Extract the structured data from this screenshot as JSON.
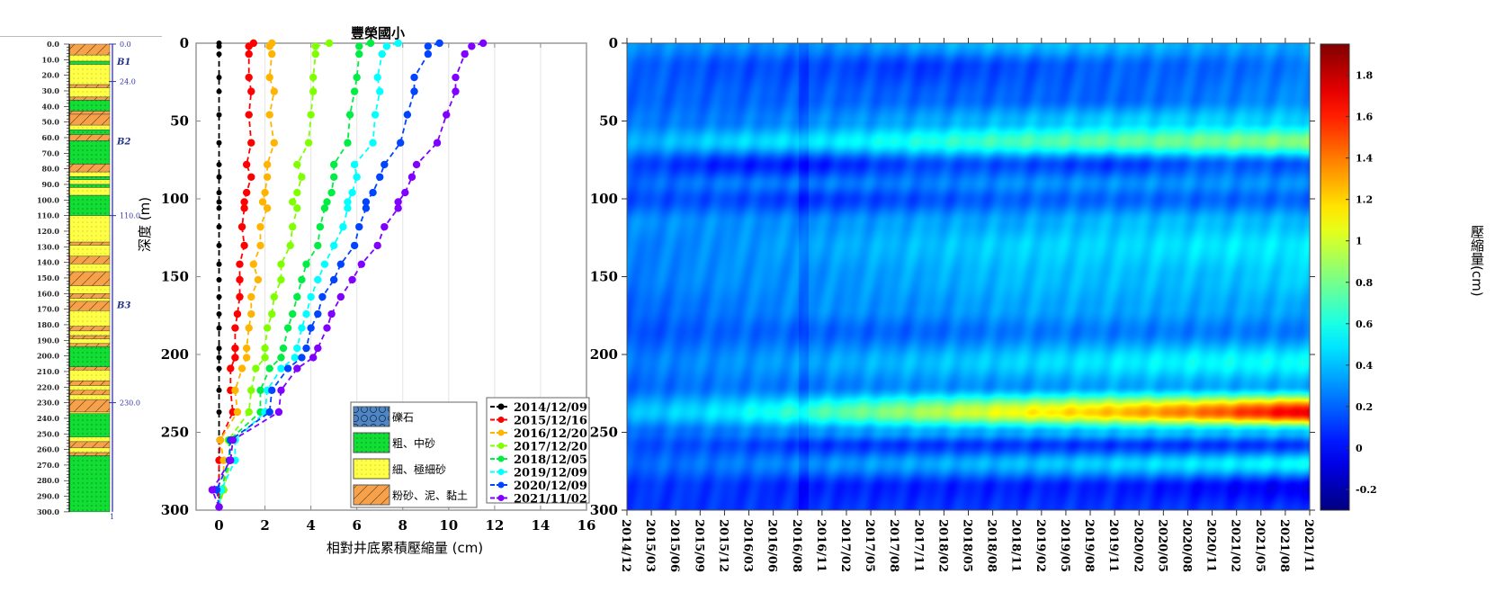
{
  "chart_data": [
    {
      "type": "strata-column",
      "depth_tick_labels": [
        "0.0",
        "10.0",
        "20.0",
        "30.0",
        "40.0",
        "50.0",
        "60.0",
        "70.0",
        "80.0",
        "90.0",
        "100.0",
        "110.0",
        "120.0",
        "130.0",
        "140.0",
        "150.0",
        "160.0",
        "170.0",
        "180.0",
        "190.0",
        "200.0",
        "210.0",
        "220.0",
        "230.0",
        "240.0",
        "250.0",
        "260.0",
        "270.0",
        "280.0",
        "290.0",
        "300.0"
      ],
      "boundary_labels": [
        {
          "depth": 0,
          "label": "0.0"
        },
        {
          "depth": 24,
          "label": "24.0"
        },
        {
          "depth": 110,
          "label": "110.0"
        },
        {
          "depth": 230,
          "label": "230.0"
        }
      ],
      "unit_labels": [
        {
          "depth": 11,
          "label": "B1"
        },
        {
          "depth": 62,
          "label": "B2"
        },
        {
          "depth": 167,
          "label": "B3"
        }
      ],
      "bottom_label": "1",
      "layers": [
        [
          0,
          7,
          "silt"
        ],
        [
          7,
          11,
          "fine"
        ],
        [
          11,
          13,
          "coarse"
        ],
        [
          13,
          26,
          "fine"
        ],
        [
          26,
          28,
          "silt"
        ],
        [
          28,
          34,
          "fine"
        ],
        [
          34,
          36,
          "silt"
        ],
        [
          36,
          43,
          "coarse"
        ],
        [
          43,
          45,
          "silt"
        ],
        [
          45,
          52,
          "silt"
        ],
        [
          52,
          55,
          "fine"
        ],
        [
          55,
          58,
          "coarse"
        ],
        [
          58,
          62,
          "silt"
        ],
        [
          62,
          77,
          "coarse"
        ],
        [
          77,
          82,
          "silt"
        ],
        [
          82,
          85,
          "fine"
        ],
        [
          85,
          87,
          "coarse"
        ],
        [
          87,
          90,
          "fine"
        ],
        [
          90,
          92,
          "coarse"
        ],
        [
          92,
          97,
          "fine"
        ],
        [
          97,
          110,
          "coarse"
        ],
        [
          110,
          127,
          "fine"
        ],
        [
          127,
          129,
          "silt"
        ],
        [
          129,
          136,
          "fine"
        ],
        [
          136,
          141,
          "silt"
        ],
        [
          141,
          146,
          "fine"
        ],
        [
          146,
          155,
          "silt"
        ],
        [
          155,
          160,
          "fine"
        ],
        [
          160,
          163,
          "silt"
        ],
        [
          163,
          165,
          "fine"
        ],
        [
          165,
          171,
          "silt"
        ],
        [
          171,
          181,
          "fine"
        ],
        [
          181,
          184,
          "silt"
        ],
        [
          184,
          187,
          "fine"
        ],
        [
          187,
          189,
          "silt"
        ],
        [
          189,
          192,
          "fine"
        ],
        [
          192,
          194,
          "silt"
        ],
        [
          194,
          207,
          "coarse"
        ],
        [
          207,
          209,
          "silt"
        ],
        [
          209,
          216,
          "fine"
        ],
        [
          216,
          219,
          "silt"
        ],
        [
          219,
          222,
          "fine"
        ],
        [
          222,
          225,
          "silt"
        ],
        [
          225,
          228,
          "fine"
        ],
        [
          228,
          236,
          "silt"
        ],
        [
          236,
          237,
          "fine"
        ],
        [
          237,
          252,
          "coarse"
        ],
        [
          252,
          255,
          "fine"
        ],
        [
          255,
          259,
          "silt"
        ],
        [
          259,
          262,
          "fine"
        ],
        [
          262,
          264,
          "silt"
        ],
        [
          264,
          300,
          "coarse"
        ]
      ]
    },
    {
      "type": "line",
      "title": "豐榮國小",
      "xlabel": "相對井底累積壓縮量 (cm)",
      "ylabel": "深度 (m)",
      "xlim": [
        -1,
        16
      ],
      "ylim": [
        0,
        300
      ],
      "y_reversed": true,
      "x_ticks": [
        0,
        2,
        4,
        6,
        8,
        10,
        12,
        14,
        16
      ],
      "y_ticks": [
        0,
        50,
        100,
        150,
        200,
        250,
        300
      ],
      "grid": "vertical",
      "legend_placement": "bottom-right",
      "depth": [
        0,
        2,
        7,
        22,
        31,
        46,
        64,
        78,
        86,
        96,
        102,
        106,
        118,
        130,
        142,
        152,
        163,
        174,
        183,
        196,
        202,
        209,
        223,
        237,
        255,
        268,
        287,
        298
      ],
      "series": [
        {
          "name": "2014/12/09",
          "color": "#000000",
          "values": [
            0,
            0,
            0,
            0,
            0,
            0,
            0,
            0,
            0,
            0,
            0,
            0,
            0,
            0,
            0,
            0,
            0,
            0,
            0,
            0,
            0,
            0,
            0,
            0,
            0,
            0,
            0,
            0
          ]
        },
        {
          "name": "2015/12/16",
          "color": "#ff0000",
          "values": [
            1.5,
            1.3,
            1.3,
            1.3,
            1.4,
            1.3,
            1.4,
            1.2,
            1.4,
            1.2,
            1.1,
            1.1,
            1.0,
            1.1,
            0.9,
            0.9,
            0.9,
            0.8,
            0.7,
            0.7,
            0.7,
            0.5,
            0.5,
            0.6,
            0.05,
            0.0,
            0.0,
            0.0
          ]
        },
        {
          "name": "2016/12/20",
          "color": "#ffb400",
          "values": [
            2.3,
            2.2,
            2.3,
            2.2,
            2.4,
            2.2,
            2.4,
            2.1,
            2.1,
            2.0,
            1.9,
            2.1,
            1.8,
            1.8,
            1.5,
            1.7,
            1.4,
            1.4,
            1.3,
            1.2,
            1.2,
            1.0,
            0.7,
            0.8,
            0.05,
            0.2,
            0.2,
            0.0
          ]
        },
        {
          "name": "2017/12/20",
          "color": "#80ff00",
          "values": [
            4.8,
            4.2,
            4.2,
            4.1,
            4.1,
            4.0,
            3.9,
            3.4,
            3.6,
            3.4,
            3.2,
            3.4,
            3.2,
            3.1,
            2.7,
            2.7,
            2.4,
            2.3,
            2.1,
            2.0,
            2.0,
            1.6,
            1.4,
            1.3,
            0.4,
            0.5,
            0.2,
            0.0
          ]
        },
        {
          "name": "2018/12/05",
          "color": "#00ee44",
          "values": [
            6.6,
            6.1,
            6.1,
            6.0,
            5.9,
            5.7,
            5.6,
            5.0,
            5.0,
            4.9,
            4.7,
            4.6,
            4.4,
            4.3,
            3.8,
            3.6,
            3.4,
            3.2,
            3.0,
            2.8,
            2.7,
            2.2,
            1.8,
            1.8,
            0.45,
            0.45,
            0.1,
            0.0
          ]
        },
        {
          "name": "2019/12/09",
          "color": "#00ffff",
          "values": [
            7.8,
            7.3,
            7.1,
            6.9,
            7.0,
            6.8,
            6.7,
            5.9,
            6.0,
            5.8,
            5.6,
            5.6,
            5.4,
            5.0,
            4.6,
            4.3,
            4.0,
            3.8,
            3.6,
            3.4,
            3.3,
            2.7,
            2.1,
            2.0,
            0.7,
            0.7,
            0.1,
            0.0
          ]
        },
        {
          "name": "2020/12/09",
          "color": "#0044ff",
          "values": [
            9.6,
            9.1,
            9.1,
            8.5,
            8.5,
            8.2,
            7.9,
            7.2,
            7.0,
            6.7,
            6.4,
            6.4,
            6.1,
            5.9,
            5.3,
            5.0,
            4.5,
            4.3,
            4.0,
            3.8,
            3.6,
            3.0,
            2.3,
            2.2,
            0.5,
            0.45,
            -0.1,
            0.0
          ]
        },
        {
          "name": "2021/11/02",
          "color": "#8000ff",
          "values": [
            11.5,
            11.0,
            10.7,
            10.3,
            10.3,
            9.9,
            9.5,
            8.6,
            8.4,
            8.1,
            7.8,
            7.8,
            7.2,
            6.9,
            6.2,
            5.8,
            5.3,
            4.9,
            4.7,
            4.3,
            4.1,
            3.4,
            2.7,
            2.6,
            0.6,
            0.5,
            -0.3,
            0.0
          ]
        }
      ],
      "lithology_legend": [
        {
          "key": "gravel",
          "label": "礫石",
          "color": "#4f86c6"
        },
        {
          "key": "coarse",
          "label": "粗、中砂",
          "color": "#11dd33"
        },
        {
          "key": "fine",
          "label": "細、極細砂",
          "color": "#ffff44"
        },
        {
          "key": "silt",
          "label": "粉砂、泥、黏土",
          "color": "#f7a24a"
        }
      ]
    },
    {
      "type": "heatmap",
      "ylim": [
        0,
        300
      ],
      "y_ticks": [
        0,
        50,
        100,
        150,
        200,
        250,
        300
      ],
      "x_tick_labels": [
        "2014/12",
        "2015/03",
        "2015/06",
        "2015/09",
        "2015/12",
        "2016/03",
        "2016/06",
        "2016/08",
        "2016/11",
        "2017/02",
        "2017/05",
        "2017/08",
        "2017/11",
        "2018/02",
        "2018/05",
        "2018/08",
        "2018/11",
        "2019/02",
        "2019/05",
        "2019/08",
        "2019/11",
        "2020/02",
        "2020/05",
        "2020/08",
        "2020/11",
        "2021/02",
        "2021/05",
        "2021/08",
        "2021/11"
      ],
      "colorbar": {
        "label": "壓縮量(cm)",
        "range": [
          -0.3,
          1.95
        ],
        "ticks": [
          "-0.2",
          "0",
          "0.2",
          "0.4",
          "0.6",
          "0.8",
          "1",
          "1.2",
          "1.4",
          "1.6",
          "1.8"
        ],
        "tick_values": [
          -0.2,
          0,
          0.2,
          0.4,
          0.6,
          0.8,
          1,
          1.2,
          1.4,
          1.6,
          1.8
        ],
        "colormap": "jet"
      },
      "sample_dates": [
        "2014/12",
        "2015/12",
        "2016/11",
        "2017/11",
        "2018/11",
        "2019/11",
        "2020/11",
        "2021/11"
      ],
      "sample_depths": [
        0,
        15,
        35,
        50,
        63,
        78,
        90,
        100,
        115,
        130,
        150,
        170,
        185,
        205,
        220,
        237,
        250,
        258,
        270,
        285,
        300
      ],
      "values": [
        [
          0.3,
          0.3,
          0.3,
          0.35,
          0.4,
          0.4,
          0.35,
          0.35
        ],
        [
          0.2,
          0.15,
          0.15,
          0.1,
          0.15,
          0.2,
          0.2,
          0.25
        ],
        [
          0.2,
          0.2,
          0.2,
          0.2,
          0.2,
          0.2,
          0.25,
          0.3
        ],
        [
          0.25,
          0.25,
          0.3,
          0.35,
          0.4,
          0.45,
          0.45,
          0.45
        ],
        [
          0.35,
          0.45,
          0.5,
          0.6,
          0.7,
          0.75,
          0.8,
          0.85
        ],
        [
          0.15,
          0.05,
          0.05,
          0.15,
          0.15,
          0.1,
          0.2,
          0.15
        ],
        [
          0.2,
          0.25,
          0.25,
          0.25,
          0.3,
          0.3,
          0.3,
          0.3
        ],
        [
          0.15,
          0.15,
          0.1,
          0.15,
          0.2,
          0.2,
          0.2,
          0.2
        ],
        [
          0.3,
          0.3,
          0.3,
          0.35,
          0.35,
          0.4,
          0.4,
          0.4
        ],
        [
          0.25,
          0.3,
          0.35,
          0.4,
          0.45,
          0.45,
          0.5,
          0.5
        ],
        [
          0.25,
          0.3,
          0.3,
          0.35,
          0.4,
          0.4,
          0.4,
          0.45
        ],
        [
          0.2,
          0.25,
          0.3,
          0.3,
          0.35,
          0.35,
          0.35,
          0.35
        ],
        [
          0.15,
          0.2,
          0.2,
          0.2,
          0.25,
          0.25,
          0.25,
          0.25
        ],
        [
          0.25,
          0.3,
          0.35,
          0.4,
          0.45,
          0.5,
          0.55,
          0.55
        ],
        [
          0.2,
          0.25,
          0.25,
          0.3,
          0.3,
          0.35,
          0.35,
          0.35
        ],
        [
          0.4,
          0.5,
          0.7,
          0.9,
          1.1,
          1.25,
          1.45,
          1.75
        ],
        [
          0.2,
          0.25,
          0.3,
          0.35,
          0.35,
          0.4,
          0.4,
          0.4
        ],
        [
          0.15,
          0.15,
          0.1,
          0.1,
          0.1,
          0.1,
          0.1,
          0.1
        ],
        [
          0.2,
          0.25,
          0.3,
          0.35,
          0.4,
          0.45,
          0.5,
          0.55
        ],
        [
          0.1,
          0.1,
          0.05,
          0.05,
          0.05,
          0.05,
          0.0,
          -0.05
        ],
        [
          0.1,
          0.1,
          0.1,
          0.1,
          0.1,
          0.1,
          0.1,
          0.1
        ]
      ]
    }
  ]
}
